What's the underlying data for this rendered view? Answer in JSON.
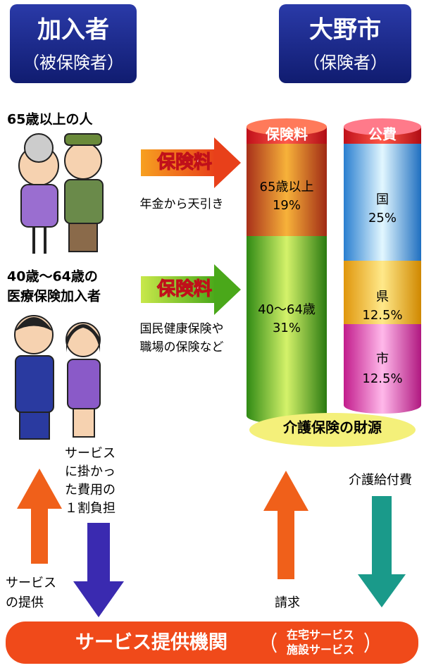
{
  "left_header": {
    "title": "加入者",
    "subtitle": "（被保険者）"
  },
  "right_header": {
    "title": "大野市",
    "subtitle": "（保険者）"
  },
  "groups": [
    {
      "label_lines": [
        "65歳以上の人"
      ],
      "arrow_label": "保険料",
      "note_lines": [
        "年金から天引き"
      ]
    },
    {
      "label_lines": [
        "40歳～64歳の",
        "医療保険加入者"
      ],
      "arrow_label": "保険料",
      "note_lines": [
        "国民健康保険や",
        "職場の保険など"
      ]
    }
  ],
  "funding": {
    "insurance": {
      "title": "保険料",
      "segments": [
        {
          "name": "65歳以上",
          "share": "19%"
        },
        {
          "name": "40～64歳",
          "share": "31%"
        }
      ]
    },
    "public": {
      "title": "公費",
      "segments": [
        {
          "name": "国",
          "share": "25%"
        },
        {
          "name": "県",
          "share": "12.5%"
        },
        {
          "name": "市",
          "share": "12.5%"
        }
      ]
    },
    "caption": "介護保険の財源"
  },
  "flows": {
    "copay_lines": [
      "サービス",
      "に掛かっ",
      "た費用の",
      "１割負担"
    ],
    "service_lines": [
      "サービス",
      "の提供"
    ],
    "claim": "請求",
    "benefit": "介護給付費"
  },
  "provider": {
    "title": "サービス提供機関",
    "types": [
      "在宅サービス",
      "施設サービス"
    ]
  }
}
